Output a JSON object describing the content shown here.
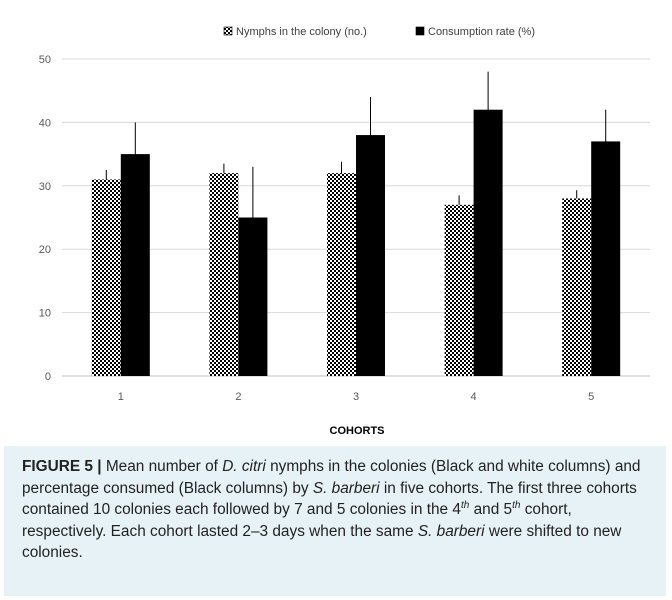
{
  "chart_data": {
    "type": "bar",
    "categories": [
      "1",
      "2",
      "3",
      "4",
      "5"
    ],
    "series": [
      {
        "name": "Nymphs in the colony (no.)",
        "values": [
          31,
          32,
          32,
          27,
          28
        ],
        "err_hi": [
          32.5,
          33.5,
          33.8,
          28.5,
          29.3
        ],
        "pattern": "checkered"
      },
      {
        "name": "Consumption rate (%)",
        "values": [
          35,
          25,
          38,
          42,
          37
        ],
        "err_lo": [
          30,
          17,
          32,
          36,
          32
        ],
        "err_hi": [
          40,
          33,
          44,
          48,
          42
        ],
        "color": "#000000"
      }
    ],
    "xlabel": "COHORTS",
    "ylabel": "",
    "ylim": [
      0,
      50
    ],
    "yticks": [
      0,
      10,
      20,
      30,
      40,
      50
    ],
    "grid": true,
    "legend_position": "top"
  },
  "caption": {
    "label": "FIGURE 5 |",
    "t1": " Mean number of ",
    "s1": "D. citri",
    "t2": " nymphs in the colonies (Black and white columns) and percentage consumed (Black columns) by ",
    "s2": "S. barberi",
    "t3": " in five cohorts. The first three cohorts contained 10 colonies each followed by 7 and 5 colonies in the 4",
    "sup1": "th",
    "t4": " and 5",
    "sup2": "th",
    "t5": " cohort, respectively. Each cohort lasted 2–3 days when the same ",
    "s3": "S. barberi",
    "t6": " were shifted to new colonies."
  }
}
